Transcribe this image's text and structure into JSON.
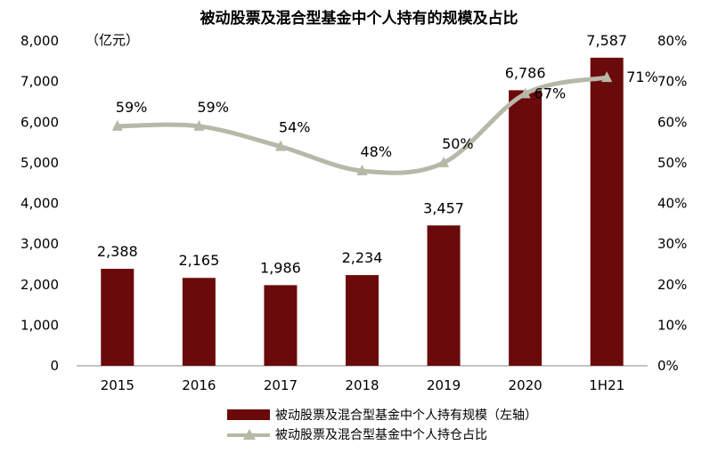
{
  "chart_data": {
    "type": "bar+line",
    "title": "被动股票及混合型基金中个人持有的规模及占比",
    "unit_label": "（亿元）",
    "categories": [
      "2015",
      "2016",
      "2017",
      "2018",
      "2019",
      "2020",
      "1H21"
    ],
    "series": [
      {
        "name": "被动股票及混合型基金中个人持有规模（左轴）",
        "type": "bar",
        "axis": "left",
        "values": [
          2388,
          2165,
          1986,
          2234,
          3457,
          6786,
          7587
        ],
        "labels": [
          "2,388",
          "2,165",
          "1,986",
          "2,234",
          "3,457",
          "6,786",
          "7,587"
        ],
        "color": "#6B0A0A"
      },
      {
        "name": "被动股票及混合型基金中个人持仓占比",
        "type": "line",
        "axis": "right",
        "values": [
          59,
          59,
          54,
          48,
          50,
          67,
          71
        ],
        "labels": [
          "59%",
          "59%",
          "54%",
          "48%",
          "50%",
          "67%",
          "71%"
        ],
        "color": "#B8B8A8"
      }
    ],
    "left_axis": {
      "min": 0,
      "max": 8000,
      "step": 1000,
      "ticks": [
        "0",
        "1,000",
        "2,000",
        "3,000",
        "4,000",
        "5,000",
        "6,000",
        "7,000",
        "8,000"
      ]
    },
    "right_axis": {
      "min": 0,
      "max": 80,
      "step": 10,
      "ticks": [
        "0%",
        "10%",
        "20%",
        "30%",
        "40%",
        "50%",
        "60%",
        "70%",
        "80%"
      ]
    },
    "grid": false,
    "legend_position": "bottom"
  }
}
